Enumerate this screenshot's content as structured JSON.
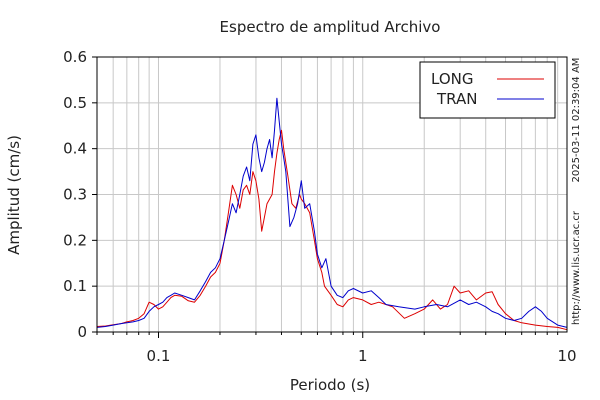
{
  "chart_data": {
    "type": "line",
    "title": "Espectro de amplitud Archivo",
    "xlabel": "Periodo (s)",
    "ylabel": "Amplitud (cm/s)",
    "x_scale": "log",
    "xlim": [
      0.05,
      10
    ],
    "ylim": [
      0,
      0.6
    ],
    "x_ticks": [
      {
        "value": 0.1,
        "label": "0.1"
      },
      {
        "value": 1,
        "label": "1"
      },
      {
        "value": 10,
        "label": "10"
      }
    ],
    "y_ticks": [
      {
        "value": 0,
        "label": "0"
      },
      {
        "value": 0.1,
        "label": "0.1"
      },
      {
        "value": 0.2,
        "label": "0.2"
      },
      {
        "value": 0.3,
        "label": "0.3"
      },
      {
        "value": 0.4,
        "label": "0.4"
      },
      {
        "value": 0.5,
        "label": "0.5"
      },
      {
        "value": 0.6,
        "label": "0.6"
      }
    ],
    "grid": true,
    "legend_position": "top-right",
    "series": [
      {
        "name": "LONG",
        "color": "#dd0000",
        "points": [
          [
            0.05,
            0.012
          ],
          [
            0.055,
            0.013
          ],
          [
            0.06,
            0.016
          ],
          [
            0.065,
            0.018
          ],
          [
            0.07,
            0.022
          ],
          [
            0.075,
            0.025
          ],
          [
            0.08,
            0.03
          ],
          [
            0.085,
            0.04
          ],
          [
            0.09,
            0.065
          ],
          [
            0.095,
            0.06
          ],
          [
            0.1,
            0.05
          ],
          [
            0.105,
            0.055
          ],
          [
            0.11,
            0.065
          ],
          [
            0.115,
            0.075
          ],
          [
            0.12,
            0.08
          ],
          [
            0.13,
            0.078
          ],
          [
            0.14,
            0.068
          ],
          [
            0.15,
            0.065
          ],
          [
            0.16,
            0.08
          ],
          [
            0.17,
            0.1
          ],
          [
            0.18,
            0.12
          ],
          [
            0.19,
            0.13
          ],
          [
            0.2,
            0.15
          ],
          [
            0.21,
            0.2
          ],
          [
            0.22,
            0.26
          ],
          [
            0.23,
            0.32
          ],
          [
            0.24,
            0.3
          ],
          [
            0.25,
            0.27
          ],
          [
            0.26,
            0.31
          ],
          [
            0.27,
            0.32
          ],
          [
            0.28,
            0.3
          ],
          [
            0.29,
            0.35
          ],
          [
            0.3,
            0.33
          ],
          [
            0.31,
            0.29
          ],
          [
            0.32,
            0.22
          ],
          [
            0.33,
            0.25
          ],
          [
            0.34,
            0.28
          ],
          [
            0.36,
            0.3
          ],
          [
            0.37,
            0.35
          ],
          [
            0.38,
            0.39
          ],
          [
            0.39,
            0.42
          ],
          [
            0.4,
            0.44
          ],
          [
            0.41,
            0.4
          ],
          [
            0.43,
            0.34
          ],
          [
            0.45,
            0.28
          ],
          [
            0.47,
            0.27
          ],
          [
            0.49,
            0.3
          ],
          [
            0.5,
            0.29
          ],
          [
            0.52,
            0.28
          ],
          [
            0.55,
            0.26
          ],
          [
            0.58,
            0.2
          ],
          [
            0.6,
            0.16
          ],
          [
            0.63,
            0.13
          ],
          [
            0.65,
            0.1
          ],
          [
            0.7,
            0.08
          ],
          [
            0.75,
            0.06
          ],
          [
            0.8,
            0.055
          ],
          [
            0.85,
            0.07
          ],
          [
            0.9,
            0.075
          ],
          [
            1.0,
            0.07
          ],
          [
            1.1,
            0.06
          ],
          [
            1.2,
            0.065
          ],
          [
            1.4,
            0.055
          ],
          [
            1.6,
            0.03
          ],
          [
            1.8,
            0.04
          ],
          [
            2.0,
            0.05
          ],
          [
            2.2,
            0.07
          ],
          [
            2.4,
            0.05
          ],
          [
            2.6,
            0.06
          ],
          [
            2.8,
            0.1
          ],
          [
            3.0,
            0.085
          ],
          [
            3.3,
            0.09
          ],
          [
            3.6,
            0.07
          ],
          [
            4.0,
            0.085
          ],
          [
            4.3,
            0.088
          ],
          [
            4.6,
            0.06
          ],
          [
            5.0,
            0.04
          ],
          [
            5.5,
            0.025
          ],
          [
            6.0,
            0.02
          ],
          [
            7.0,
            0.015
          ],
          [
            8.0,
            0.012
          ],
          [
            9.0,
            0.01
          ],
          [
            10.0,
            0.005
          ]
        ]
      },
      {
        "name": "TRAN",
        "color": "#0000cc",
        "points": [
          [
            0.05,
            0.01
          ],
          [
            0.055,
            0.012
          ],
          [
            0.06,
            0.015
          ],
          [
            0.065,
            0.018
          ],
          [
            0.07,
            0.02
          ],
          [
            0.075,
            0.022
          ],
          [
            0.08,
            0.025
          ],
          [
            0.085,
            0.03
          ],
          [
            0.09,
            0.045
          ],
          [
            0.095,
            0.055
          ],
          [
            0.1,
            0.06
          ],
          [
            0.105,
            0.065
          ],
          [
            0.11,
            0.075
          ],
          [
            0.115,
            0.08
          ],
          [
            0.12,
            0.085
          ],
          [
            0.13,
            0.08
          ],
          [
            0.14,
            0.075
          ],
          [
            0.15,
            0.07
          ],
          [
            0.16,
            0.09
          ],
          [
            0.17,
            0.11
          ],
          [
            0.18,
            0.13
          ],
          [
            0.19,
            0.14
          ],
          [
            0.2,
            0.16
          ],
          [
            0.21,
            0.2
          ],
          [
            0.22,
            0.24
          ],
          [
            0.23,
            0.28
          ],
          [
            0.24,
            0.26
          ],
          [
            0.25,
            0.3
          ],
          [
            0.26,
            0.34
          ],
          [
            0.27,
            0.36
          ],
          [
            0.28,
            0.33
          ],
          [
            0.29,
            0.41
          ],
          [
            0.3,
            0.43
          ],
          [
            0.31,
            0.38
          ],
          [
            0.32,
            0.35
          ],
          [
            0.33,
            0.37
          ],
          [
            0.34,
            0.4
          ],
          [
            0.35,
            0.42
          ],
          [
            0.36,
            0.38
          ],
          [
            0.37,
            0.44
          ],
          [
            0.38,
            0.51
          ],
          [
            0.39,
            0.46
          ],
          [
            0.4,
            0.41
          ],
          [
            0.41,
            0.38
          ],
          [
            0.42,
            0.35
          ],
          [
            0.44,
            0.23
          ],
          [
            0.46,
            0.25
          ],
          [
            0.48,
            0.28
          ],
          [
            0.5,
            0.33
          ],
          [
            0.52,
            0.27
          ],
          [
            0.55,
            0.28
          ],
          [
            0.58,
            0.22
          ],
          [
            0.6,
            0.17
          ],
          [
            0.63,
            0.14
          ],
          [
            0.66,
            0.16
          ],
          [
            0.7,
            0.1
          ],
          [
            0.75,
            0.08
          ],
          [
            0.8,
            0.075
          ],
          [
            0.85,
            0.09
          ],
          [
            0.9,
            0.095
          ],
          [
            1.0,
            0.085
          ],
          [
            1.1,
            0.09
          ],
          [
            1.2,
            0.075
          ],
          [
            1.3,
            0.06
          ],
          [
            1.5,
            0.055
          ],
          [
            1.8,
            0.05
          ],
          [
            2.0,
            0.055
          ],
          [
            2.3,
            0.06
          ],
          [
            2.6,
            0.055
          ],
          [
            3.0,
            0.07
          ],
          [
            3.3,
            0.06
          ],
          [
            3.6,
            0.065
          ],
          [
            4.0,
            0.055
          ],
          [
            4.3,
            0.045
          ],
          [
            4.6,
            0.04
          ],
          [
            5.0,
            0.03
          ],
          [
            5.5,
            0.025
          ],
          [
            6.0,
            0.03
          ],
          [
            6.5,
            0.045
          ],
          [
            7.0,
            0.055
          ],
          [
            7.5,
            0.045
          ],
          [
            8.0,
            0.03
          ],
          [
            9.0,
            0.015
          ],
          [
            10.0,
            0.01
          ]
        ]
      }
    ]
  },
  "side_labels": {
    "timestamp": "2025-03-11 02:39:04 AM",
    "url": "http://www.lis.ucr.ac.cr"
  }
}
